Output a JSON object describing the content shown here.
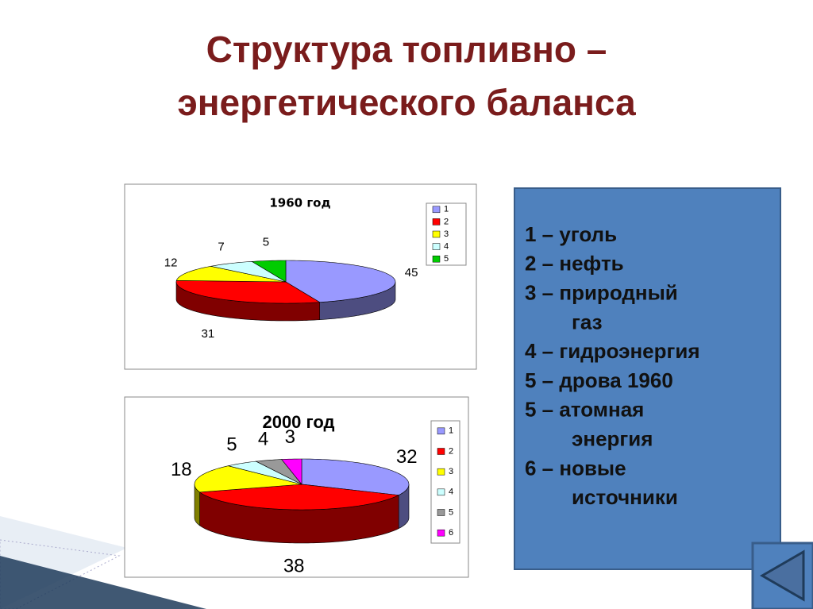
{
  "title": [
    "Структура топливно –",
    "энергетического баланса"
  ],
  "chart_data": [
    {
      "type": "pie",
      "title": "1960 год",
      "categories": [
        "1",
        "2",
        "3",
        "4",
        "5"
      ],
      "values": [
        45,
        31,
        12,
        7,
        5
      ],
      "colors": [
        "#9999ff",
        "#ff0000",
        "#ffff00",
        "#ccffff",
        "#00cc00"
      ]
    },
    {
      "type": "pie",
      "title": "2000 год",
      "categories": [
        "1",
        "2",
        "3",
        "4",
        "5",
        "6"
      ],
      "values": [
        32,
        38,
        18,
        5,
        4,
        3
      ],
      "colors": [
        "#9999ff",
        "#ff0000",
        "#ffff00",
        "#ccffff",
        "#999999",
        "#ff00ff"
      ]
    }
  ],
  "legend_box": [
    "1 – уголь",
    "2 – нефть",
    "3 – природный",
    "газ",
    "4 – гидроэнергия",
    "5 – дрова 1960",
    "5 – атомная",
    "энергия",
    "6 – новые",
    "источники"
  ]
}
